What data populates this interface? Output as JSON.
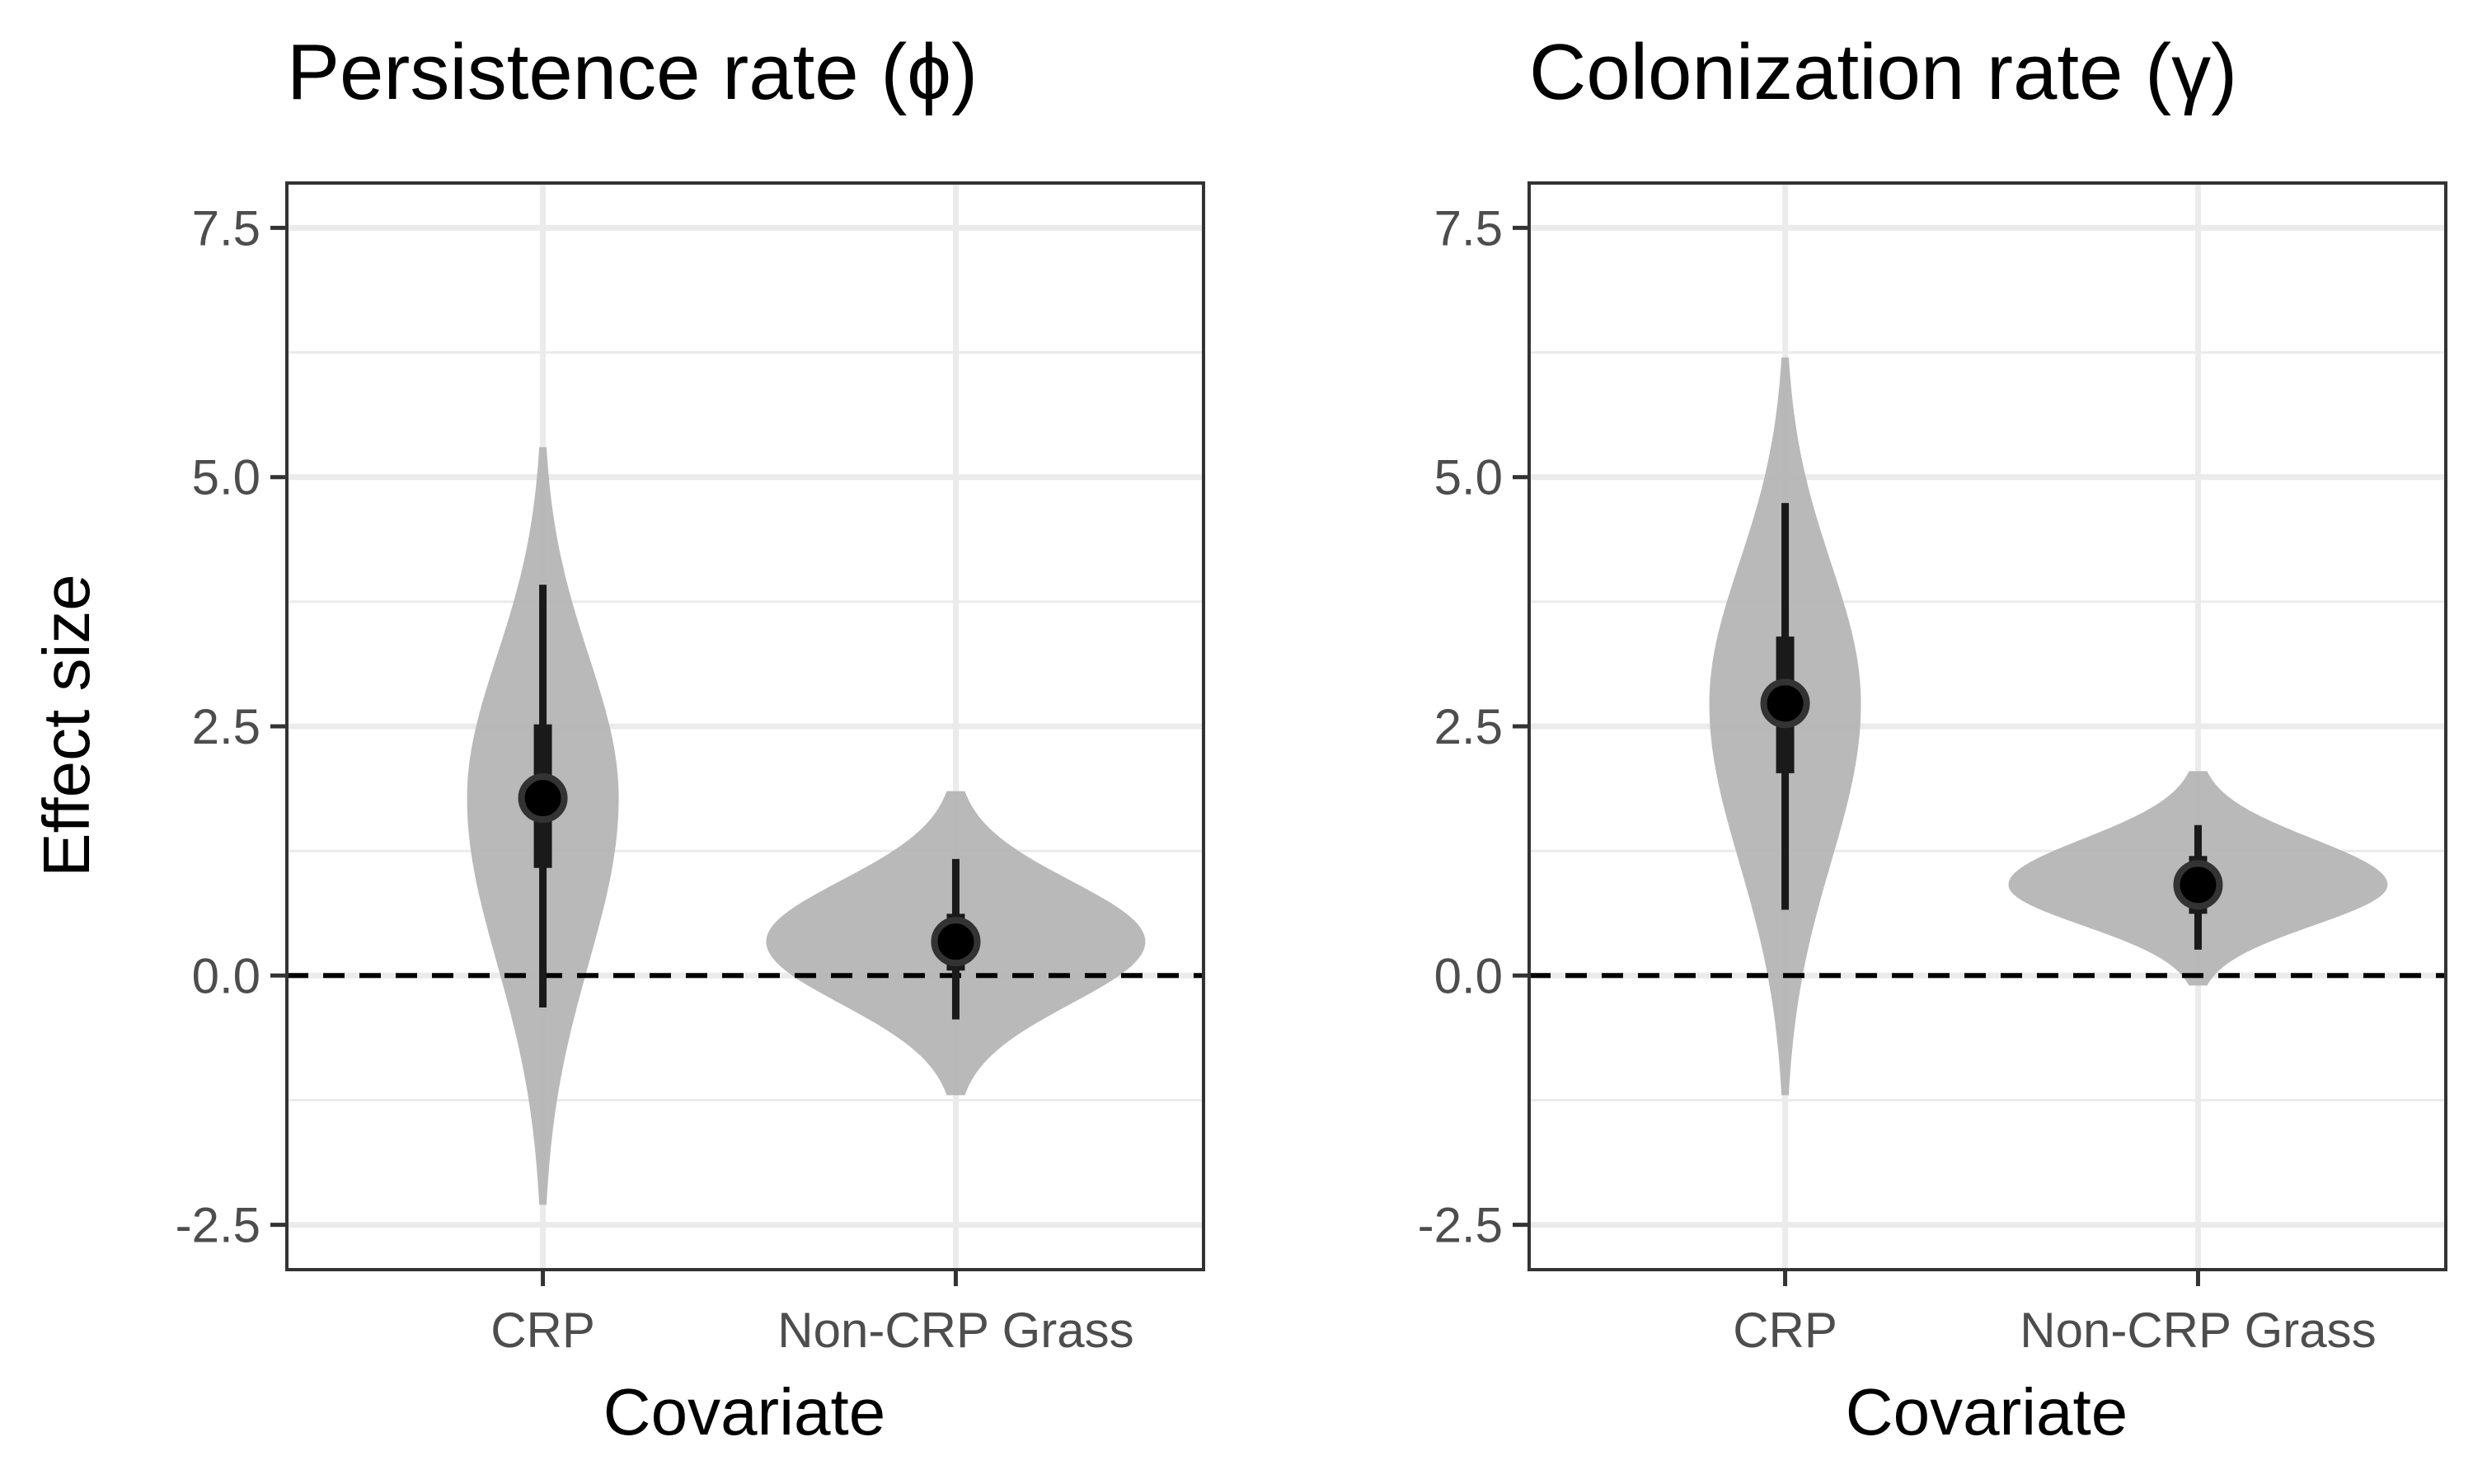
{
  "figure": {
    "ylabel": "Effect size"
  },
  "chart_data": [
    {
      "type": "violin",
      "title": "Persistence rate (ϕ)",
      "xlabel": "Covariate",
      "ylabel": "Effect size",
      "categories": [
        "CRP",
        "Non-CRP Grass"
      ],
      "ylim": [
        -2.95,
        7.95
      ],
      "yticks": [
        "-2.5",
        "0.0",
        "2.5",
        "5.0",
        "7.5"
      ],
      "grid": true,
      "reference_line": {
        "y": 0,
        "style": "dashed"
      },
      "violin_color": "#b3b3b3",
      "point_color": "#000000",
      "series": [
        {
          "category": "CRP",
          "median": 1.78,
          "inner_interval": [
            1.08,
            2.52
          ],
          "outer_interval": [
            -0.32,
            3.92
          ],
          "range": [
            -2.3,
            5.3
          ]
        },
        {
          "category": "Non-CRP Grass",
          "median": 0.34,
          "inner_interval": [
            0.05,
            0.62
          ],
          "outer_interval": [
            -0.44,
            1.17
          ],
          "range": [
            -1.2,
            1.85
          ]
        }
      ]
    },
    {
      "type": "violin",
      "title": "Colonization rate (γ)",
      "xlabel": "Covariate",
      "ylabel": "Effect size",
      "categories": [
        "CRP",
        "Non-CRP Grass"
      ],
      "ylim": [
        -2.95,
        7.95
      ],
      "yticks": [
        "-2.5",
        "0.0",
        "2.5",
        "5.0",
        "7.5"
      ],
      "grid": true,
      "reference_line": {
        "y": 0,
        "style": "dashed"
      },
      "violin_color": "#b3b3b3",
      "point_color": "#000000",
      "series": [
        {
          "category": "CRP",
          "median": 2.73,
          "inner_interval": [
            2.03,
            3.4
          ],
          "outer_interval": [
            0.66,
            4.74
          ],
          "range": [
            -1.2,
            6.2
          ]
        },
        {
          "category": "Non-CRP Grass",
          "median": 0.91,
          "inner_interval": [
            0.62,
            1.2
          ],
          "outer_interval": [
            0.26,
            1.51
          ],
          "range": [
            -0.1,
            2.05
          ]
        }
      ]
    }
  ]
}
